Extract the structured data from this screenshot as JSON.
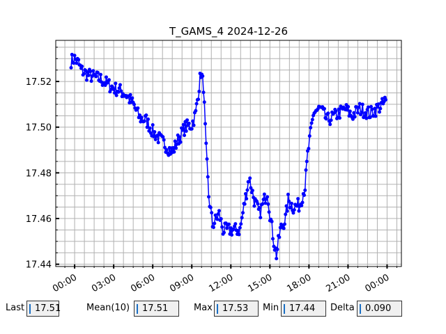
{
  "chart_data": {
    "type": "line",
    "title": "T_GAMS_4 2024-12-26",
    "xlabel": "",
    "ylabel": "",
    "x_unit": "hours since 00:00",
    "xlim": [
      -1.45,
      25.1
    ],
    "ylim": [
      17.439,
      17.538
    ],
    "grid": true,
    "x_ticks": [
      0,
      3,
      6,
      9,
      12,
      15,
      18,
      21,
      24
    ],
    "x_tick_labels": [
      "00:00",
      "03:00",
      "06:00",
      "09:00",
      "12:00",
      "15:00",
      "18:00",
      "21:00",
      "00:00"
    ],
    "y_ticks": [
      17.44,
      17.46,
      17.48,
      17.5,
      17.52
    ],
    "y_tick_labels": [
      "17.44",
      "17.46",
      "17.48",
      "17.50",
      "17.52"
    ],
    "series_color": "#0000ff",
    "noise_amplitude": 0.003,
    "series": [
      {
        "name": "T_GAMS_4",
        "x": [
          -0.27,
          0,
          0.3,
          0.5,
          1,
          1.5,
          2,
          2.5,
          3,
          3.5,
          4,
          4.5,
          5,
          5.5,
          6,
          6.5,
          7,
          7.5,
          8,
          8.5,
          9,
          9.3,
          9.5,
          9.7,
          9.9,
          10.1,
          10.3,
          10.6,
          11.1,
          11.4,
          12,
          12.7,
          13.0,
          13.4,
          13.8,
          14.2,
          14.8,
          15.0,
          15.3,
          15.5,
          15.8,
          16.2,
          16.4,
          16.8,
          17.3,
          17.7,
          17.9,
          18.2,
          18.4,
          18.9,
          19.4,
          20.0,
          20.8,
          21.3,
          21.9,
          22.7,
          23.2,
          23.7,
          23.9
        ],
        "y": [
          17.529,
          17.53,
          17.528,
          17.525,
          17.523,
          17.522,
          17.521,
          17.519,
          17.517,
          17.516,
          17.514,
          17.51,
          17.504,
          17.503,
          17.498,
          17.495,
          17.492,
          17.489,
          17.495,
          17.5,
          17.501,
          17.506,
          17.515,
          17.524,
          17.518,
          17.49,
          17.47,
          17.457,
          17.462,
          17.455,
          17.455,
          17.455,
          17.465,
          17.478,
          17.468,
          17.462,
          17.472,
          17.462,
          17.45,
          17.444,
          17.455,
          17.46,
          17.468,
          17.465,
          17.466,
          17.474,
          17.488,
          17.5,
          17.507,
          17.508,
          17.503,
          17.505,
          17.508,
          17.505,
          17.508,
          17.506,
          17.508,
          17.51,
          17.512
        ]
      }
    ]
  },
  "status_fields": [
    {
      "label": "Last",
      "value": "17.51"
    },
    {
      "label": "Mean(10)",
      "value": "17.51"
    },
    {
      "label": "Max",
      "value": "17.53"
    },
    {
      "label": "Min",
      "value": "17.44"
    },
    {
      "label": "Delta",
      "value": "0.090"
    }
  ]
}
